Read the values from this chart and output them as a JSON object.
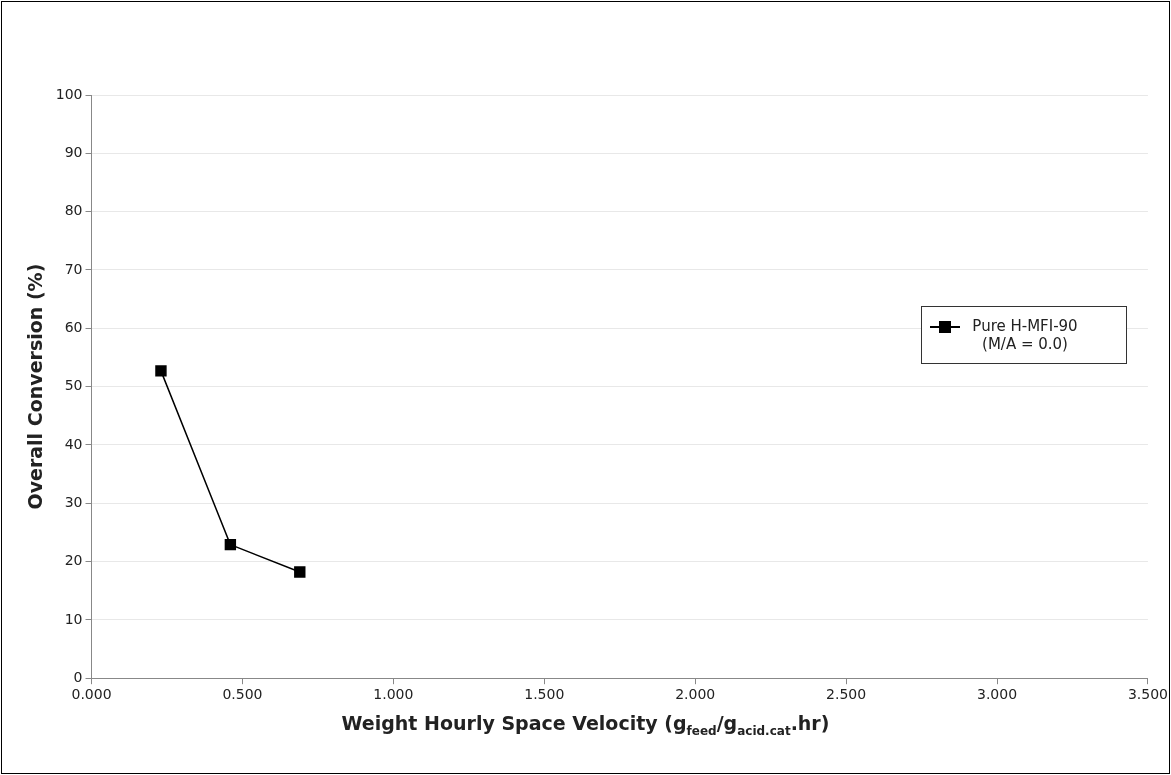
{
  "chart_data": {
    "type": "line",
    "xlabel": "Weight Hourly Space Velocity (g$_{feed}$/g$_{acid.cat}$.hr)",
    "ylabel": "Overall Conversion (%)",
    "series": [
      {
        "name": "Pure H-MFI-90 (M/A = 0.0)",
        "color": "#000000",
        "x": [
          0.23,
          0.46,
          0.69
        ],
        "values": [
          52.7,
          22.9,
          18.2
        ]
      }
    ],
    "xlim": [
      0,
      3.5
    ],
    "xticks": [
      {
        "value": 0,
        "label": "0.000"
      },
      {
        "value": 0.5,
        "label": "0.500"
      },
      {
        "value": 1,
        "label": "1.000"
      },
      {
        "value": 1.5,
        "label": "1.500"
      },
      {
        "value": 2,
        "label": "2.000"
      },
      {
        "value": 2.5,
        "label": "2.500"
      },
      {
        "value": 3,
        "label": "3.000"
      },
      {
        "value": 3.5,
        "label": "3.500"
      }
    ],
    "ylim": [
      0,
      100
    ],
    "yticks": [
      0,
      10,
      20,
      30,
      40,
      50,
      60,
      70,
      80,
      90,
      100
    ],
    "grid": "y",
    "legend": "right",
    "marker": "square",
    "line_style": "solid"
  }
}
